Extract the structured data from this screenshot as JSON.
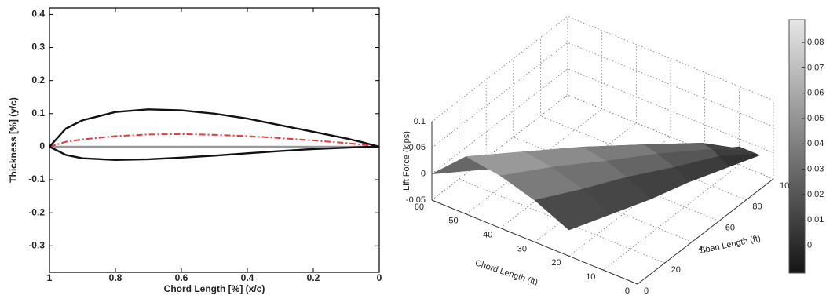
{
  "chart_data": [
    {
      "type": "line",
      "xlabel": "Chord Length [%] (x/c)",
      "ylabel": "Thickness [%] (y/c)",
      "x": [
        1,
        0.95,
        0.9,
        0.8,
        0.7,
        0.6,
        0.5,
        0.4,
        0.3,
        0.2,
        0.1,
        0.05,
        0
      ],
      "series": [
        {
          "color": "#111111",
          "linestyle": "solid",
          "values": [
            0,
            0.055,
            0.08,
            0.105,
            0.113,
            0.11,
            0.1,
            0.085,
            0.065,
            0.045,
            0.025,
            0.013,
            0
          ]
        },
        {
          "color": "#111111",
          "linestyle": "solid",
          "values": [
            0,
            -0.025,
            -0.035,
            -0.04,
            -0.038,
            -0.033,
            -0.027,
            -0.02,
            -0.013,
            -0.007,
            -0.003,
            -0.001,
            0
          ]
        },
        {
          "color": "#e8383a",
          "linestyle": "dashdot",
          "values": [
            0,
            0.015,
            0.022,
            0.032,
            0.037,
            0.038,
            0.036,
            0.032,
            0.026,
            0.019,
            0.011,
            0.006,
            0
          ]
        },
        {
          "color": "#999999",
          "linestyle": "solid",
          "values": [
            0,
            0,
            0,
            0,
            0,
            0,
            0,
            0,
            0,
            0,
            0,
            0,
            0
          ]
        }
      ],
      "xlim": [
        1,
        0
      ],
      "xticks": [
        1,
        0.8,
        0.6,
        0.4,
        0.2,
        0
      ],
      "ylim": [
        -0.38,
        0.42
      ],
      "yticks": [
        -0.3,
        -0.2,
        -0.1,
        0,
        0.1,
        0.2,
        0.3,
        0.4
      ]
    },
    {
      "type": "surface",
      "xlabel": "Chord Length (ft)",
      "ylabel": "Span Length (ft)",
      "zlabel": "Lift Force (kips)",
      "xlim": [
        0,
        60
      ],
      "xticks": [
        0,
        10,
        20,
        30,
        40,
        50,
        60
      ],
      "ylim": [
        0,
        100
      ],
      "yticks": [
        0,
        20,
        40,
        60,
        80,
        100
      ],
      "zlim": [
        -0.05,
        0.1
      ],
      "zticks": [
        -0.05,
        0,
        0.05,
        0.1
      ],
      "colormap": "gray",
      "clim": [
        -0.011,
        0.089
      ],
      "cticks": [
        0,
        0.01,
        0.02,
        0.03,
        0.04,
        0.05,
        0.06,
        0.07,
        0.08
      ],
      "sections": [
        {
          "span": 0,
          "chord": [
            60,
            50,
            40,
            30,
            20
          ],
          "lift": [
            0,
            0.06,
            0.05,
            0.03,
            0
          ]
        },
        {
          "span": 20,
          "chord": [
            49,
            41,
            33,
            24,
            16
          ],
          "lift": [
            0,
            0.053,
            0.045,
            0.027,
            0
          ]
        },
        {
          "span": 40,
          "chord": [
            38,
            32,
            25,
            19,
            12
          ],
          "lift": [
            0,
            0.046,
            0.038,
            0.023,
            0
          ]
        },
        {
          "span": 60,
          "chord": [
            27,
            22,
            18,
            13,
            9
          ],
          "lift": [
            0,
            0.037,
            0.03,
            0.018,
            0
          ]
        },
        {
          "span": 80,
          "chord": [
            16,
            13,
            10,
            8,
            5
          ],
          "lift": [
            0,
            0.024,
            0.02,
            0.012,
            0
          ]
        },
        {
          "span": 95,
          "chord": [
            8,
            6,
            5,
            3,
            2
          ],
          "lift": [
            0,
            0,
            0,
            0,
            0
          ]
        }
      ]
    }
  ]
}
